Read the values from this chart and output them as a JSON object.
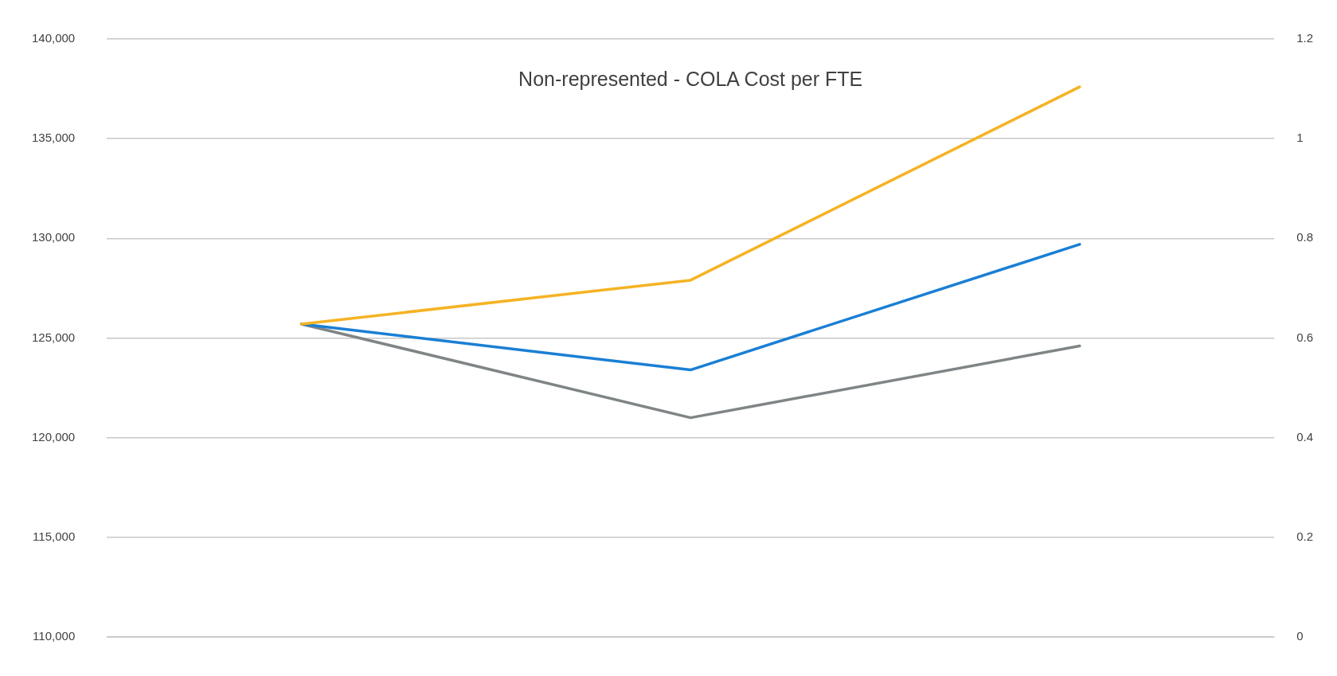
{
  "chart_data": {
    "type": "line",
    "title": "Non-represented - COLA Cost per FTE",
    "categories": [
      null,
      null,
      null
    ],
    "series": [
      {
        "color": "#f5b324",
        "values": [
          125700,
          127900,
          137600
        ]
      },
      {
        "color": "#1a7fd4",
        "values": [
          125700,
          123400,
          129700
        ]
      },
      {
        "color": "#7f8586",
        "values": [
          125700,
          121000,
          124600
        ]
      }
    ],
    "ylim": [
      110000,
      140000
    ],
    "yticks": [
      {
        "value": 110000,
        "label": "110,000"
      },
      {
        "value": 115000,
        "label": "115,000"
      },
      {
        "value": 120000,
        "label": "120,000"
      },
      {
        "value": 125000,
        "label": "125,000"
      },
      {
        "value": 130000,
        "label": "130,000"
      },
      {
        "value": 135000,
        "label": "135,000"
      },
      {
        "value": 140000,
        "label": "140,000"
      }
    ],
    "y2lim": [
      0,
      1.2
    ],
    "y2ticks": [
      0,
      0.2,
      0.4,
      0.6,
      0.8,
      1,
      1.2
    ],
    "grid": "y",
    "legend": false,
    "marker": "none",
    "line_style": "solid"
  }
}
